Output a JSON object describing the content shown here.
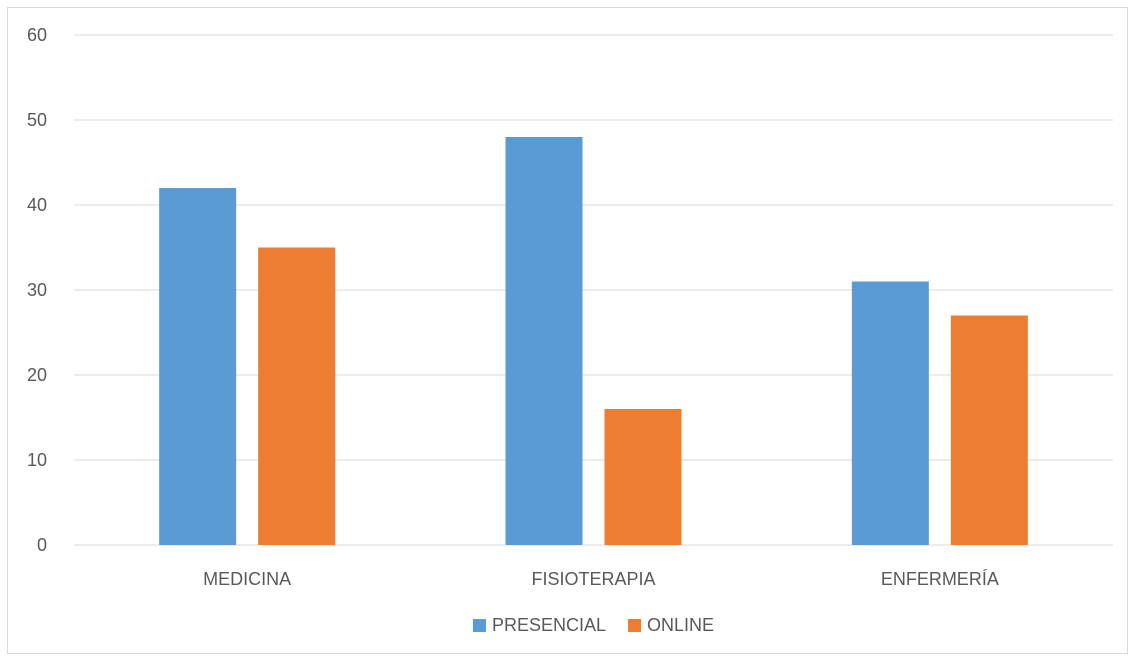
{
  "chart_data": {
    "type": "bar",
    "title": "",
    "xlabel": "",
    "ylabel": "",
    "categories": [
      "MEDICINA",
      "FISIOTERAPIA",
      "ENFERMERÍA"
    ],
    "series": [
      {
        "name": "PRESENCIAL",
        "values": [
          42,
          48,
          31
        ],
        "color": "#5b9bd5"
      },
      {
        "name": "ONLINE",
        "values": [
          35,
          16,
          27
        ],
        "color": "#ed7d31"
      }
    ],
    "ylim": [
      0,
      60
    ],
    "yticks": [
      0,
      10,
      20,
      30,
      40,
      50,
      60
    ],
    "grid": true,
    "legend": "bottom",
    "gridline_color": "#d9d9d9",
    "text_color": "#595959"
  }
}
